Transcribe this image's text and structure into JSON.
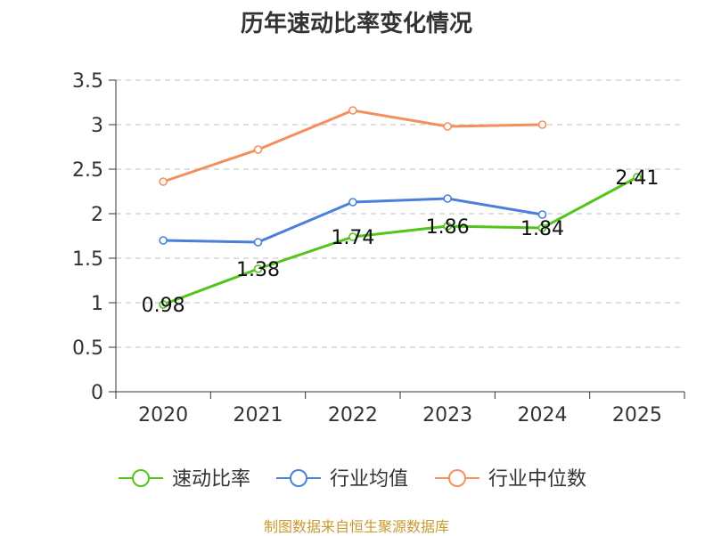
{
  "chart_data": {
    "type": "line",
    "title": "历年速动比率变化情况",
    "categories": [
      "2020",
      "2021",
      "2022",
      "2023",
      "2024",
      "2025"
    ],
    "y_ticks": [
      "0",
      "0.5",
      "1",
      "1.5",
      "2",
      "2.5",
      "3",
      "3.5"
    ],
    "ylim": [
      0,
      3.5
    ],
    "grid": true,
    "legend_position": "bottom",
    "series": [
      {
        "name": "速动比率",
        "color": "#52c41a",
        "values": [
          0.98,
          1.38,
          1.74,
          1.86,
          1.84,
          2.41
        ],
        "labels": [
          "0.98",
          "1.38",
          "1.74",
          "1.86",
          "1.84",
          "2.41"
        ]
      },
      {
        "name": "行业均值",
        "color": "#4a7fdb",
        "values": [
          1.7,
          1.68,
          2.13,
          2.17,
          1.99,
          null
        ]
      },
      {
        "name": "行业中位数",
        "color": "#f58f5b",
        "values": [
          2.36,
          2.72,
          3.16,
          2.98,
          3.0,
          null
        ]
      }
    ],
    "source": "制图数据来自恒生聚源数据库"
  }
}
